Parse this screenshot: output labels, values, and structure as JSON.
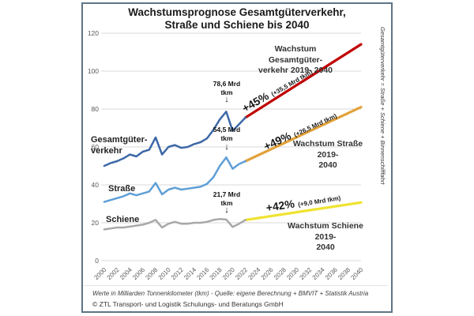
{
  "title": "Wachstumsprognose Gesamtgüterverkehr,\nStraße und Schiene bis 2040",
  "right_axis_note": "Gesamtgüterverkehr = Straße + Schiene + Binnenschifffahrt",
  "footer": {
    "line1": "Werte in Milliarden Tonnenkilometer (tkm) - Quelle: eigene Berechnung + BMVIT + Statistik Austria",
    "line2": "© ZTL Transport- und Logistik Schulungs- und Beratungs GmbH"
  },
  "series_labels": {
    "gesamt": "Gesamtgüter-\nverkehr",
    "strasse": "Straße",
    "schiene": "Schiene"
  },
  "annotations": {
    "gesamt_growth_caption": "Wachstum Gesamtgüter-\nverkehr 2019- 2040",
    "strasse_growth_caption": "Wachstum Straße 2019-\n2040",
    "schiene_growth_caption": "Wachstum Schiene 2019-\n2040",
    "gesamt_pct": "+45%",
    "gesamt_pct_detail": "(+35,5 Mrd tkm)",
    "strasse_pct": "+49%",
    "strasse_pct_detail": "(+26,5 Mrd tkm)",
    "schiene_pct": "+42%",
    "schiene_pct_detail": "(+9,0 Mrd tkm)",
    "gesamt_value_2019": "78,6 Mrd\ntkm",
    "strasse_value_2019": "54,5 Mrd\ntkm",
    "schiene_value_2019": "21,7 Mrd\ntkm",
    "down_arrow": "↓"
  },
  "colors": {
    "gesamt_line": "#3C68A6",
    "strasse_line": "#5F9FD6",
    "schiene_line": "#A8A8A8",
    "gesamt_forecast": "#C00000",
    "strasse_forecast": "#E1A23B",
    "schiene_forecast": "#EFE32F",
    "gridline": "#D9D9D9",
    "border": "#5F7487"
  },
  "chart_data": {
    "type": "line",
    "title": "Wachstumsprognose Gesamtgüterverkehr, Straße und Schiene bis 2040",
    "xlabel": "",
    "ylabel": "Werte in Milliarden Tonnenkilometer (tkm)",
    "ylim": [
      0,
      120
    ],
    "y_ticks": [
      0,
      20,
      40,
      60,
      80,
      100,
      120
    ],
    "grid": true,
    "legend_position": "inline-labels",
    "x_tick_labels": [
      "2000",
      "2002",
      "2004",
      "2006",
      "2008",
      "2010",
      "2012",
      "2014",
      "2016",
      "2018",
      "2020",
      "2022",
      "2024",
      "2026",
      "2028",
      "2030",
      "2032",
      "2034",
      "2036",
      "2038",
      "2040"
    ],
    "years_observed": [
      2000,
      2001,
      2002,
      2003,
      2004,
      2005,
      2006,
      2007,
      2008,
      2009,
      2010,
      2011,
      2012,
      2013,
      2014,
      2015,
      2016,
      2017,
      2018,
      2019,
      2020,
      2021,
      2022
    ],
    "series": [
      {
        "name": "Gesamtgüterverkehr",
        "color": "#3C68A6",
        "values": [
          50,
          51.5,
          52.5,
          54,
          56,
          55,
          57.5,
          58.5,
          65,
          56,
          60,
          61,
          59.5,
          60,
          61.5,
          62.5,
          64.5,
          69,
          74.5,
          78.6,
          68.5,
          72,
          75.5
        ]
      },
      {
        "name": "Straße",
        "color": "#5F9FD6",
        "values": [
          31,
          32,
          33,
          34,
          35.5,
          34.5,
          35.5,
          36.5,
          41,
          35,
          37.5,
          38.5,
          37.5,
          38,
          38.5,
          39,
          40.5,
          44,
          50,
          54.5,
          48.5,
          51,
          52.5
        ]
      },
      {
        "name": "Schiene",
        "color": "#A8A8A8",
        "values": [
          16.5,
          17,
          17.5,
          17.5,
          18,
          18.5,
          19,
          20,
          21.5,
          17.5,
          19.5,
          20.5,
          19.5,
          19.5,
          20,
          20,
          20.5,
          21.5,
          22,
          21.7,
          17.8,
          19.5,
          21.5
        ]
      }
    ],
    "forecast_lines": [
      {
        "name": "Gesamtgüterverkehr Prognose",
        "color": "#C00000",
        "x": [
          2022,
          2040
        ],
        "values": [
          75.5,
          114.1
        ],
        "growth_pct": "+45%",
        "growth_abs": "+35,5 Mrd tkm"
      },
      {
        "name": "Straße Prognose",
        "color": "#E1A23B",
        "x": [
          2022,
          2040
        ],
        "values": [
          52.5,
          81.0
        ],
        "growth_pct": "+49%",
        "growth_abs": "+26,5 Mrd tkm"
      },
      {
        "name": "Schiene Prognose",
        "color": "#EFE32F",
        "x": [
          2022,
          2040
        ],
        "values": [
          21.5,
          30.7
        ],
        "growth_pct": "+42%",
        "growth_abs": "+9,0 Mrd tkm"
      }
    ],
    "key_points": {
      "gesamt_2019": 78.6,
      "strasse_2019": 54.5,
      "schiene_2019": 21.7,
      "gesamt_2040": 114.1,
      "strasse_2040": 81.0,
      "schiene_2040": 30.7
    }
  }
}
